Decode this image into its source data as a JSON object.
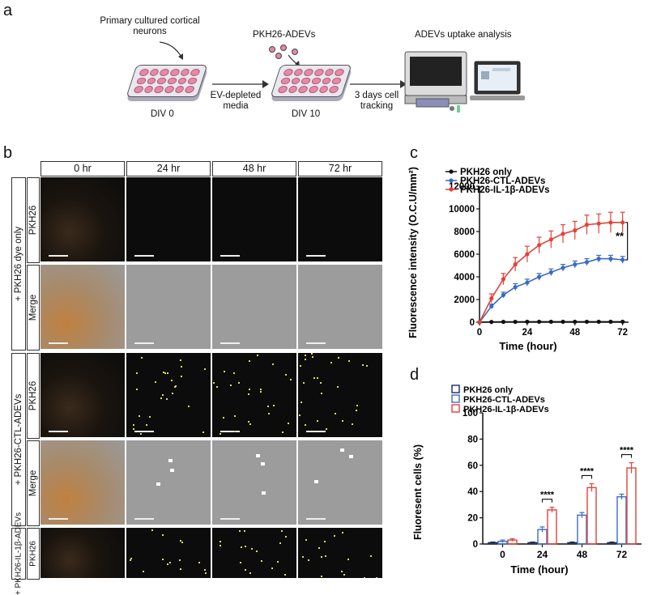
{
  "panels": {
    "a": "a",
    "b": "b",
    "c": "c",
    "d": "d"
  },
  "schematic": {
    "neurons_label": "Primary cultured cortical neurons",
    "ev_media_label": "EV-depleted media",
    "pkh_label": "PKH26-ADEVs",
    "uptake_label": "ADEVs uptake analysis",
    "tracking_label": "3 days cell tracking",
    "div0": "DIV 0",
    "div10": "DIV 10"
  },
  "micrograph": {
    "columns": [
      "0 hr",
      "24 hr",
      "48 hr",
      "72 hr"
    ],
    "groups": [
      "+ PKH26 dye only",
      "+ PKH26-CTL-ADEVs",
      "+ PKH26-IL-1β-ADEVs"
    ],
    "row_labels": [
      "PKH26",
      "Merge"
    ]
  },
  "chart_data": [
    {
      "type": "line",
      "ylabel": "Fluorescence intensity (O.C.U/mm²)",
      "xlabel": "Time (hour)",
      "xticks": [
        0,
        24,
        48,
        72
      ],
      "yticks": [
        0,
        2000,
        4000,
        6000,
        8000,
        10000,
        12000
      ],
      "xlim": [
        0,
        75
      ],
      "ylim": [
        0,
        12000
      ],
      "significance": "**",
      "x": [
        0,
        6,
        12,
        18,
        24,
        30,
        36,
        42,
        48,
        54,
        60,
        66,
        72
      ],
      "series": [
        {
          "name": "PKH26 only",
          "color": "#111111",
          "values": [
            0,
            20,
            30,
            30,
            40,
            40,
            40,
            40,
            40,
            40,
            40,
            40,
            40
          ],
          "err": [
            0,
            20,
            20,
            20,
            20,
            20,
            20,
            20,
            20,
            20,
            20,
            20,
            20
          ]
        },
        {
          "name": "PKH26-CTL-ADEVs",
          "color": "#3b6bc4",
          "values": [
            0,
            1400,
            2400,
            3100,
            3500,
            4000,
            4400,
            4800,
            5100,
            5300,
            5600,
            5600,
            5500
          ],
          "err": [
            0,
            200,
            250,
            300,
            300,
            300,
            300,
            300,
            300,
            300,
            300,
            300,
            300
          ]
        },
        {
          "name": "PKH26-IL-1β-ADEVs",
          "color": "#e0433a",
          "values": [
            0,
            2100,
            3800,
            5100,
            6000,
            6800,
            7300,
            7800,
            8100,
            8600,
            8700,
            8800,
            8800
          ],
          "err": [
            0,
            400,
            500,
            600,
            700,
            700,
            750,
            800,
            800,
            850,
            850,
            900,
            900
          ]
        }
      ]
    },
    {
      "type": "bar",
      "ylabel": "Fluoresent cells (%)",
      "xlabel": "Time (hour)",
      "categories": [
        "0",
        "24",
        "48",
        "72"
      ],
      "yticks": [
        0,
        20,
        40,
        60,
        80,
        100
      ],
      "ylim": [
        0,
        100
      ],
      "significance": [
        "",
        "****",
        "****",
        "****"
      ],
      "series": [
        {
          "name": "PKH26 only",
          "color": "#1b2a4a",
          "values": [
            1,
            1,
            1,
            1
          ],
          "err": [
            0.5,
            0.5,
            0.5,
            0.5
          ]
        },
        {
          "name": "PKH26-CTL-ADEVs",
          "color": "#3b6bc4",
          "values": [
            2,
            11,
            22,
            36
          ],
          "err": [
            1,
            2,
            2,
            2
          ]
        },
        {
          "name": "PKH26-IL-1β-ADEVs",
          "color": "#e0433a",
          "values": [
            3,
            26,
            43,
            58
          ],
          "err": [
            1,
            2,
            3,
            4
          ]
        }
      ]
    }
  ]
}
